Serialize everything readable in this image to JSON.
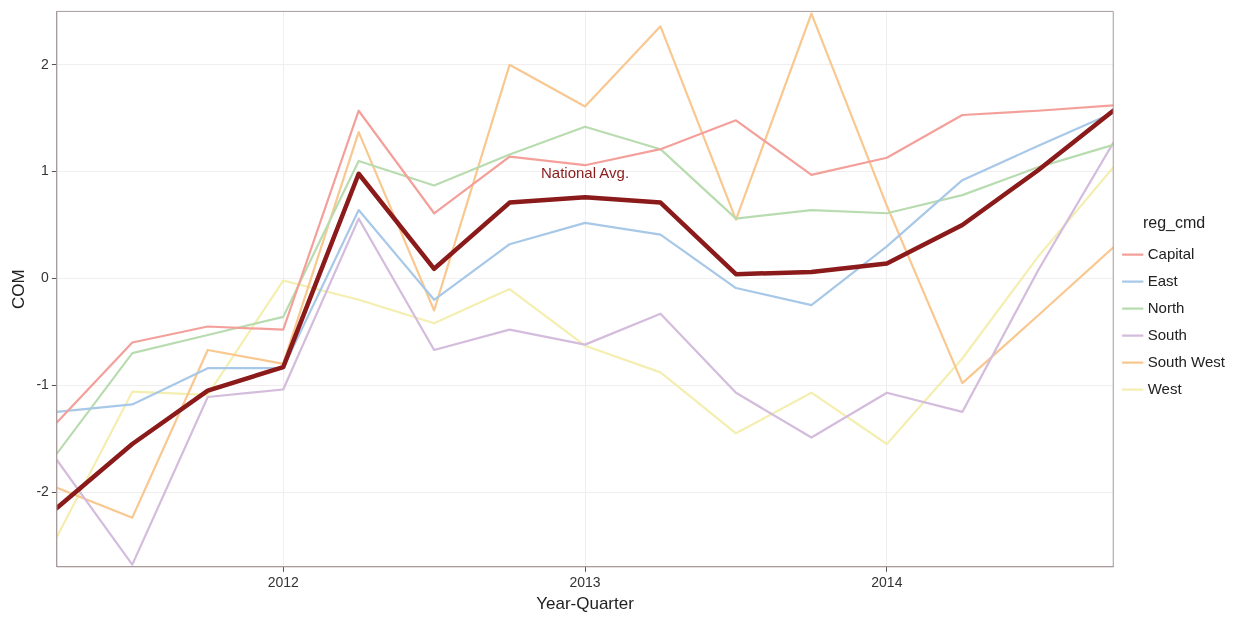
{
  "chart_data": {
    "type": "line",
    "xlabel": "Year-Quarter",
    "ylabel": "COM",
    "legend_title": "reg_cmd",
    "legend": "right",
    "grid": true,
    "marker": "none",
    "line_style": "solid",
    "x": [
      2011.25,
      2011.5,
      2011.75,
      2012,
      2012.25,
      2012.5,
      2012.75,
      2013,
      2013.25,
      2013.5,
      2013.75,
      2014,
      2014.25,
      2014.5,
      2014.75
    ],
    "xlim": [
      2011.25,
      2014.75
    ],
    "xticks": [
      2012,
      2013,
      2014
    ],
    "annotations": [
      {
        "text": "National Avg.",
        "x": 2013,
        "y": 0.76
      }
    ],
    "ylim": [
      -2.7,
      2.5
    ],
    "yticks": [
      -2,
      -1,
      0,
      1,
      2
    ],
    "series": [
      {
        "name": "Capital",
        "color": "#f4a09a",
        "values": [
          -1.35,
          -0.6,
          -0.45,
          -0.48,
          1.57,
          0.61,
          1.14,
          1.06,
          1.21,
          1.48,
          0.97,
          1.13,
          1.53,
          1.57,
          1.62
        ]
      },
      {
        "name": "East",
        "color": "#a8c8e8",
        "values": [
          -1.25,
          -1.18,
          -0.84,
          -0.84,
          0.64,
          -0.2,
          0.32,
          0.52,
          0.41,
          -0.09,
          -0.25,
          0.3,
          0.92,
          1.24,
          1.55
        ]
      },
      {
        "name": "North",
        "color": "#b8dcb0",
        "values": [
          -1.64,
          -0.7,
          -0.53,
          -0.36,
          1.1,
          0.87,
          1.16,
          1.42,
          1.21,
          0.56,
          0.64,
          0.61,
          0.78,
          1.04,
          1.25
        ]
      },
      {
        "name": "South",
        "color": "#d4bcdc",
        "values": [
          -1.7,
          -2.68,
          -1.11,
          -1.04,
          0.56,
          -0.67,
          -0.48,
          -0.62,
          -0.33,
          -1.07,
          -1.49,
          -1.07,
          -1.25,
          0.07,
          1.27
        ]
      },
      {
        "name": "South West",
        "color": "#f8c890",
        "values": [
          -1.96,
          -2.24,
          -0.67,
          -0.8,
          1.37,
          -0.3,
          2.0,
          1.61,
          2.36,
          0.55,
          2.48,
          0.68,
          -0.98,
          -0.35,
          0.29
        ]
      },
      {
        "name": "West",
        "color": "#f4eeb0",
        "values": [
          -2.42,
          -1.06,
          -1.09,
          -0.02,
          -0.2,
          -0.42,
          -0.1,
          -0.63,
          -0.88,
          -1.45,
          -1.07,
          -1.55,
          -0.75,
          0.2,
          1.04
        ]
      },
      {
        "color": "#8b1a1a",
        "values": [
          -2.15,
          -1.55,
          -1.05,
          -0.83,
          0.98,
          0.09,
          0.71,
          0.76,
          0.71,
          0.04,
          0.06,
          0.14,
          0.5,
          1.01,
          1.57
        ]
      }
    ]
  }
}
